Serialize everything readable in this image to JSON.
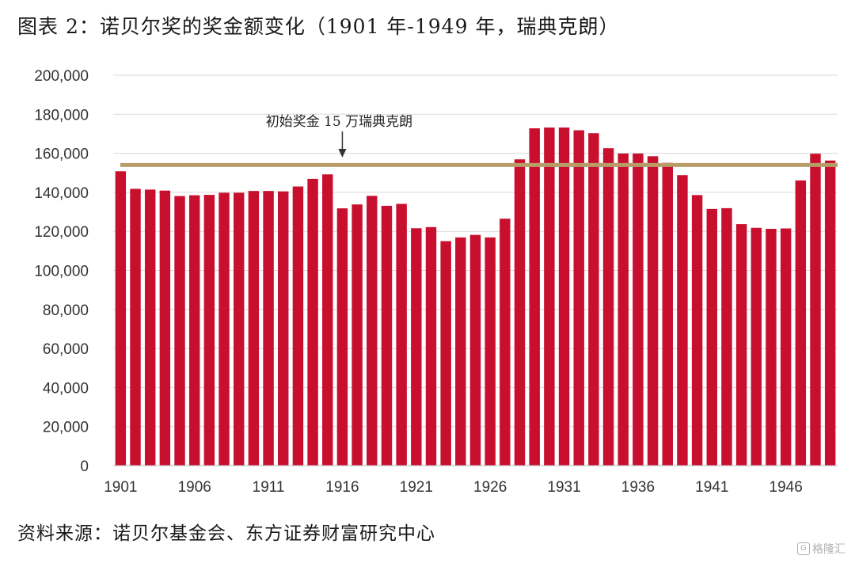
{
  "title": "图表 2：诺贝尔奖的奖金额变化（1901 年-1949 年，瑞典克朗）",
  "source": "资料来源：诺贝尔基金会、东方证券财富研究中心",
  "watermark": "格隆汇",
  "colors": {
    "bar": "#c8102e",
    "reference_line": "#b89c68",
    "grid": "#d9d9d9"
  },
  "chart_data": {
    "type": "bar",
    "x": [
      1901,
      1902,
      1903,
      1904,
      1905,
      1906,
      1907,
      1908,
      1909,
      1910,
      1911,
      1912,
      1913,
      1914,
      1915,
      1916,
      1917,
      1918,
      1919,
      1920,
      1921,
      1922,
      1923,
      1924,
      1925,
      1926,
      1927,
      1928,
      1929,
      1930,
      1931,
      1932,
      1933,
      1934,
      1935,
      1936,
      1937,
      1938,
      1939,
      1940,
      1941,
      1942,
      1943,
      1944,
      1945,
      1946,
      1947,
      1948,
      1949
    ],
    "values": [
      150800,
      141800,
      141400,
      140900,
      138100,
      138500,
      138700,
      139800,
      139800,
      140700,
      140700,
      140500,
      143000,
      146900,
      149200,
      131800,
      133800,
      138200,
      133100,
      134100,
      121600,
      122200,
      115000,
      116900,
      118200,
      116900,
      126500,
      156900,
      172800,
      173200,
      173200,
      171800,
      170300,
      162600,
      159900,
      159900,
      158500,
      155100,
      148800,
      138600,
      131500,
      131900,
      123700,
      121800,
      121300,
      121500,
      146100,
      159800,
      156300
    ],
    "ylim": [
      0,
      200000
    ],
    "yticks": [
      0,
      20000,
      40000,
      60000,
      80000,
      100000,
      120000,
      140000,
      160000,
      180000,
      200000
    ],
    "ytick_labels": [
      "0",
      "20,000",
      "40,000",
      "60,000",
      "80,000",
      "100,000",
      "120,000",
      "140,000",
      "160,000",
      "180,000",
      "200,000"
    ],
    "xtick_labels": [
      "1901",
      "1906",
      "1911",
      "1916",
      "1921",
      "1926",
      "1931",
      "1936",
      "1941",
      "1946"
    ],
    "grid": "horizontal",
    "reference_line": {
      "value": 154000
    },
    "annotation": {
      "text": "初始奖金 15 万瑞典克朗",
      "year": 1916
    }
  }
}
